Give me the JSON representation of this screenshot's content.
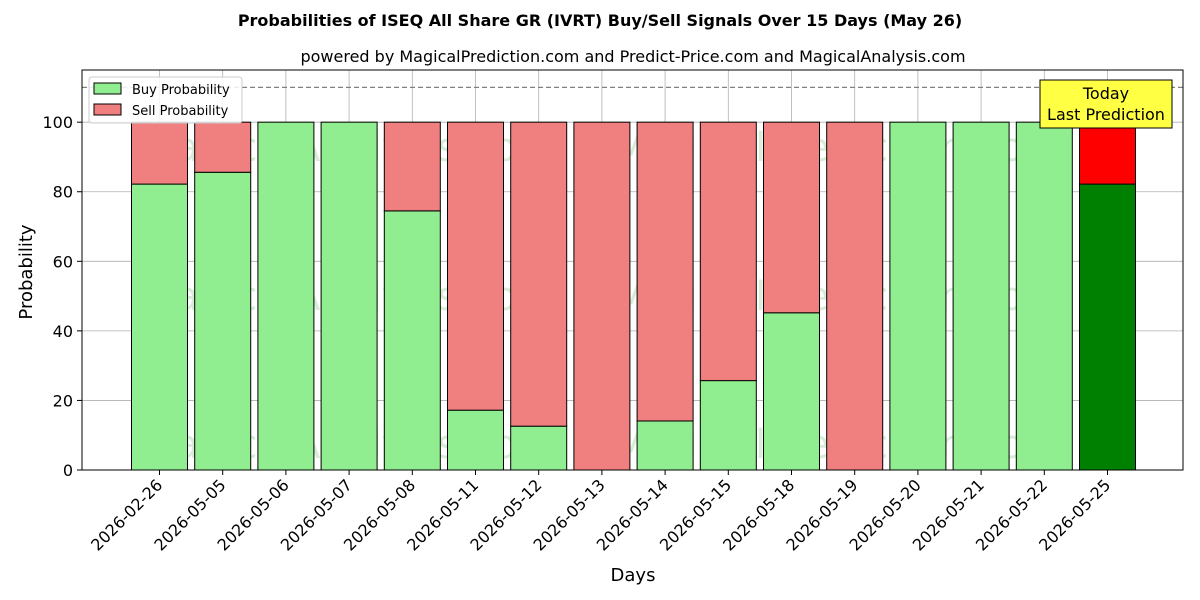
{
  "chart_data": {
    "type": "bar",
    "stacked": true,
    "title": "Probabilities of ISEQ All Share GR (IVRT) Buy/Sell Signals Over 15 Days (May 26)",
    "subtitle": "powered by MagicalPrediction.com and Predict-Price.com and MagicalAnalysis.com",
    "xlabel": "Days",
    "ylabel": "Probability",
    "ylim": [
      0,
      115
    ],
    "yticks": [
      0,
      20,
      40,
      60,
      80,
      100
    ],
    "reference_line": 110,
    "grid": true,
    "legend_position": "top-left",
    "categories": [
      "2026-02-26",
      "2026-05-05",
      "2026-05-06",
      "2026-05-07",
      "2026-05-08",
      "2026-05-11",
      "2026-05-12",
      "2026-05-13",
      "2026-05-14",
      "2026-05-15",
      "2026-05-18",
      "2026-05-19",
      "2026-05-20",
      "2026-05-21",
      "2026-05-22",
      "2026-05-25"
    ],
    "series": [
      {
        "name": "Buy Probability",
        "color": "#90ee90",
        "values": [
          82.2,
          85.6,
          100,
          100,
          74.5,
          17.2,
          12.6,
          0,
          14.1,
          25.7,
          45.2,
          0,
          100,
          100,
          100,
          82.2
        ]
      },
      {
        "name": "Sell Probability",
        "color": "#f08080",
        "values": [
          17.8,
          14.4,
          0,
          0,
          25.5,
          82.8,
          87.4,
          100,
          85.9,
          74.3,
          54.8,
          100,
          0,
          0,
          0,
          17.8
        ]
      }
    ],
    "highlight": {
      "index": 15,
      "buy_color": "#008000",
      "sell_color": "#ff0000",
      "label_line1": "Today",
      "label_line2": "Last Prediction",
      "box_color": "#ffff44"
    },
    "watermarks": [
      "MagicalAnalysis.com",
      "MagicalPrediction.com"
    ]
  }
}
